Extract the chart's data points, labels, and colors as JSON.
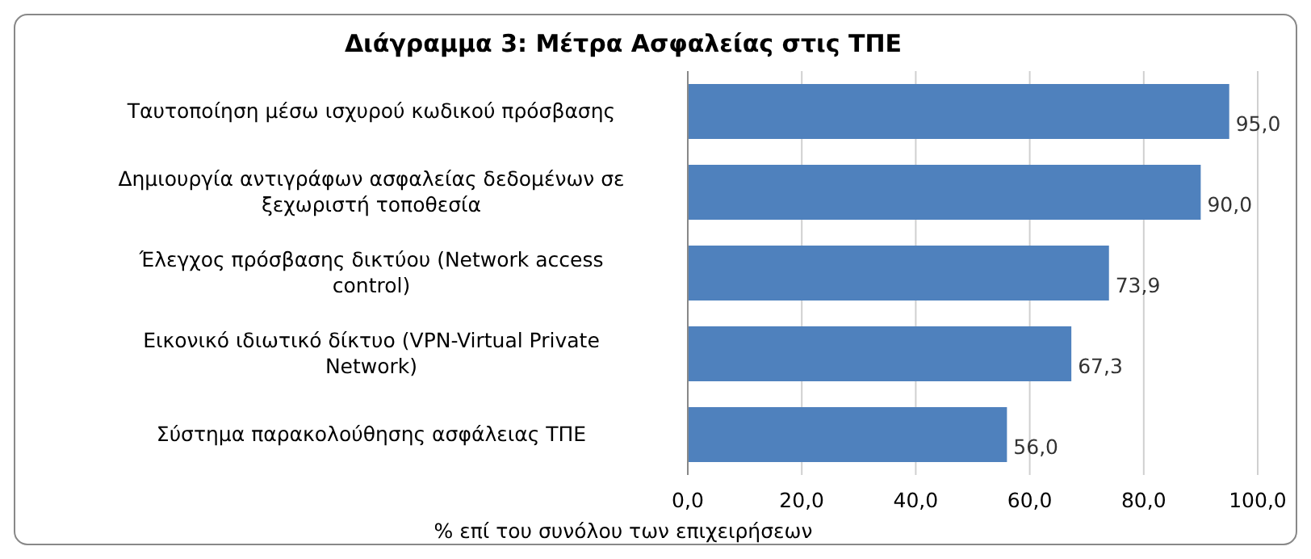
{
  "chart_data": {
    "type": "bar",
    "orientation": "horizontal",
    "title": "Διάγραμμα 3: Μέτρα Ασφαλείας στις ΤΠΕ",
    "xlabel": "% επί του συνόλου των επιχειρήσεων",
    "categories": [
      "Ταυτοποίηση μέσω ισχυρού κωδικού πρόσβασης",
      "Δημιουργία αντιγράφων ασφαλείας δεδομένων σε ξεχωριστή τοποθεσία",
      "Έλεγχος πρόσβασης δικτύου (Network access control)",
      "Εικονικό ιδιωτικό δίκτυο (VPN-Virtual Private Network)",
      "Σύστημα παρακολούθησης ασφάλειας ΤΠΕ"
    ],
    "values": [
      95.0,
      90.0,
      73.9,
      67.3,
      56.0
    ],
    "value_labels": [
      "95,0",
      "90,0",
      "73,9",
      "67,3",
      "56,0"
    ],
    "color": "#4f81bd",
    "xlim": [
      0,
      100
    ],
    "xticks": [
      {
        "value": 0,
        "label": "0,0"
      },
      {
        "value": 20,
        "label": "20,0"
      },
      {
        "value": 40,
        "label": "40,0"
      },
      {
        "value": 60,
        "label": "60,0"
      },
      {
        "value": 80,
        "label": "80,0"
      },
      {
        "value": 100,
        "label": "100,0"
      }
    ],
    "grid": "x"
  }
}
